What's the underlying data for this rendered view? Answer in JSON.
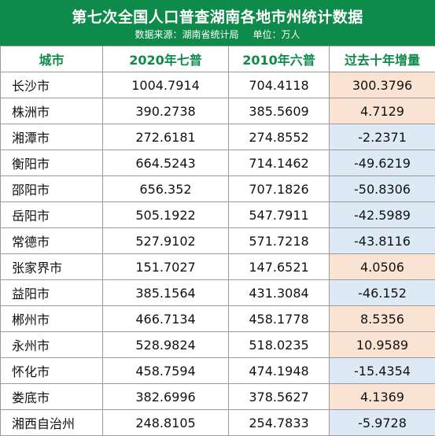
{
  "header": {
    "title": "第七次全国人口普查湖南各地市州统计数据",
    "source": "数据来源：湖南省统计局",
    "unit": "单位：万人"
  },
  "table": {
    "columns": [
      "城市",
      "2020年七普",
      "2010年六普",
      "过去十年增量"
    ],
    "rows": [
      {
        "city": "长沙市",
        "c2020": "1004.7914",
        "c2010": "704.4118",
        "change": "300.3796",
        "sign": "pos"
      },
      {
        "city": "株洲市",
        "c2020": "390.2738",
        "c2010": "385.5609",
        "change": "4.7129",
        "sign": "pos"
      },
      {
        "city": "湘潭市",
        "c2020": "272.6181",
        "c2010": "274.8552",
        "change": "-2.2371",
        "sign": "neg"
      },
      {
        "city": "衡阳市",
        "c2020": "664.5243",
        "c2010": "714.1462",
        "change": "-49.6219",
        "sign": "neg"
      },
      {
        "city": "邵阳市",
        "c2020": "656.352",
        "c2010": "707.1826",
        "change": "-50.8306",
        "sign": "neg"
      },
      {
        "city": "岳阳市",
        "c2020": "505.1922",
        "c2010": "547.7911",
        "change": "-42.5989",
        "sign": "neg"
      },
      {
        "city": "常德市",
        "c2020": "527.9102",
        "c2010": "571.7218",
        "change": "-43.8116",
        "sign": "neg"
      },
      {
        "city": "张家界市",
        "c2020": "151.7027",
        "c2010": "147.6521",
        "change": "4.0506",
        "sign": "pos"
      },
      {
        "city": "益阳市",
        "c2020": "385.1564",
        "c2010": "431.3084",
        "change": "-46.152",
        "sign": "neg"
      },
      {
        "city": "郴州市",
        "c2020": "466.7134",
        "c2010": "458.1778",
        "change": "8.5356",
        "sign": "pos"
      },
      {
        "city": "永州市",
        "c2020": "528.9824",
        "c2010": "518.0235",
        "change": "10.9589",
        "sign": "pos"
      },
      {
        "city": "怀化市",
        "c2020": "458.7594",
        "c2010": "474.1948",
        "change": "-15.4354",
        "sign": "neg"
      },
      {
        "city": "娄底市",
        "c2020": "382.6996",
        "c2010": "378.5627",
        "change": "4.1369",
        "sign": "pos"
      },
      {
        "city": "湘西自治州",
        "c2020": "248.8105",
        "c2010": "254.7833",
        "change": "-5.9728",
        "sign": "neg"
      }
    ]
  },
  "colors": {
    "header_green": "#0e8a4a",
    "increase_fill": "#fbe3d3",
    "decrease_fill": "#dde9f4"
  }
}
